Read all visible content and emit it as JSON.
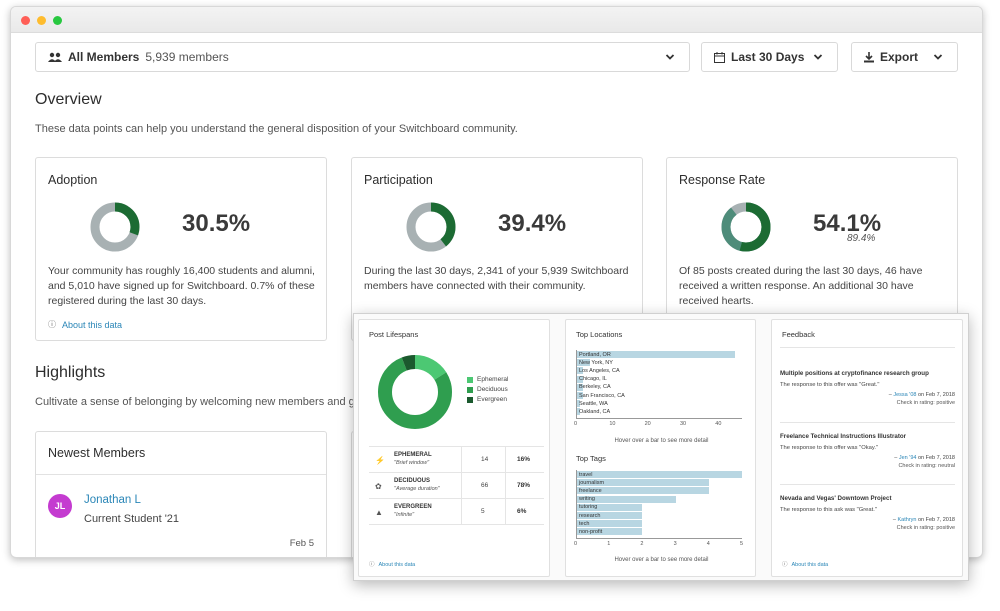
{
  "filters": {
    "members": {
      "label": "All Members",
      "count": "5,939 members"
    },
    "range": {
      "label": "Last 30 Days"
    },
    "export": {
      "label": "Export"
    }
  },
  "overview": {
    "title": "Overview",
    "subtitle": "These data points can help you understand the general disposition of your Switchboard community."
  },
  "cards": [
    {
      "title": "Adoption",
      "percent": "30.5%",
      "fraction": 0.305,
      "description": "Your community has roughly 16,400 students and alumni, and 5,010 have signed up for Switchboard. 0.7% of these registered during the last 30 days.",
      "about": "About this data"
    },
    {
      "title": "Participation",
      "percent": "39.4%",
      "fraction": 0.394,
      "description": "During the last 30 days, 2,341 of your 5,939 Switchboard members have connected with their community."
    },
    {
      "title": "Response Rate",
      "percent": "54.1%",
      "secondary": "89.4%",
      "fraction": 0.541,
      "fraction2": 0.894,
      "description": "Of 85 posts created during the last 30 days, 46 have received a written response. An additional 30 have received hearts."
    }
  ],
  "highlights": {
    "title": "Highlights",
    "subtitle": "Cultivate a sense of belonging by welcoming new members and g"
  },
  "newest_members": {
    "title": "Newest Members",
    "member": {
      "initials": "JL",
      "name": "Jonathan L",
      "role": "Current Student '21",
      "date": "Feb 5"
    }
  },
  "post_lifespans": {
    "title": "Post Lifespans",
    "legend": [
      "Ephemeral",
      "Deciduous",
      "Evergreen"
    ],
    "colors": [
      "#4cc873",
      "#2f9e4f",
      "#1b5a2e"
    ],
    "rows": [
      {
        "name": "EPHEMERAL",
        "desc": "\"Brief window\"",
        "count": "14",
        "pct": "16%"
      },
      {
        "name": "DECIDUOUS",
        "desc": "\"Average duration\"",
        "count": "66",
        "pct": "78%"
      },
      {
        "name": "EVERGREEN",
        "desc": "\"Infinite\"",
        "count": "5",
        "pct": "6%"
      }
    ],
    "values": [
      16,
      78,
      6
    ],
    "about": "About this data"
  },
  "top_locations": {
    "title": "Top Locations",
    "categories": [
      "Portland, OR",
      "New York, NY",
      "Los Angeles, CA",
      "Chicago, IL",
      "Berkeley, CA",
      "San Francisco, CA",
      "Seattle, WA",
      "Oakland, CA"
    ],
    "values": [
      45,
      4,
      2,
      2,
      2,
      2,
      1,
      1
    ],
    "ticks": [
      "0",
      "10",
      "20",
      "30",
      "40"
    ],
    "xmax": 47,
    "hint": "Hover over a bar to see more detail"
  },
  "top_tags": {
    "title": "Top Tags",
    "categories": [
      "travel",
      "journalism",
      "freelance",
      "writing",
      "tutoring",
      "research",
      "tech",
      "non-profit"
    ],
    "values": [
      5,
      4,
      4,
      3,
      2,
      2,
      2,
      2
    ],
    "ticks": [
      "0",
      "1",
      "2",
      "3",
      "4",
      "5"
    ],
    "xmax": 5,
    "hint": "Hover over a bar to see more detail"
  },
  "feedback": {
    "title": "Feedback",
    "items": [
      {
        "title": "Multiple positions at cryptofinance research group",
        "response": "The response to this offer was \"Great.\"",
        "who": "Jessa '08",
        "date": "on Feb 7, 2018",
        "checkin": "Check in rating: positive"
      },
      {
        "title": "Freelance Technical Instructions Illustrator",
        "response": "The response to this offer was \"Okay.\"",
        "who": "Jen '94",
        "date": "on Feb 7, 2018",
        "checkin": "Check in rating: neutral"
      },
      {
        "title": "Nevada and Vegas' Downtown Project",
        "response": "The response to this ask was \"Great.\"",
        "who": "Kathryn",
        "date": "on Feb 7, 2018",
        "checkin": "Check in rating: positive"
      }
    ],
    "about": "About this data"
  }
}
